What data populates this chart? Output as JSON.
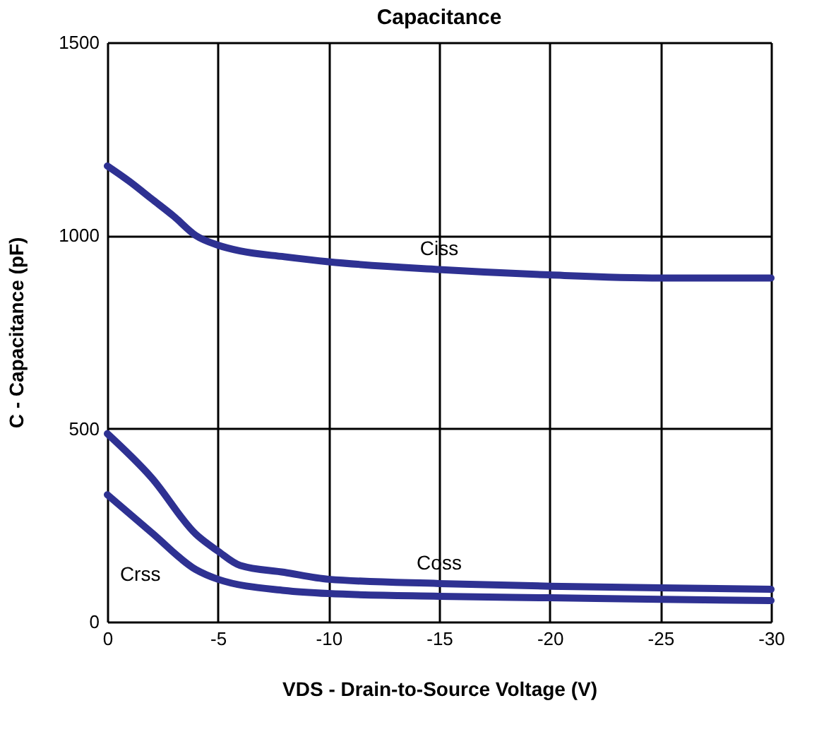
{
  "chart_data": {
    "type": "line",
    "title": "Capacitance",
    "xlabel": "VDS - Drain-to-Source Voltage (V)",
    "ylabel": "C - Capacitance (pF)",
    "xlim": [
      0,
      -30
    ],
    "xticks": [
      0,
      -5,
      -10,
      -15,
      -20,
      -25,
      -30
    ],
    "ylim": [
      0,
      1500
    ],
    "yticks": [
      0,
      500,
      1000,
      1500
    ],
    "grid": true,
    "marker": "none",
    "line_style": "solid",
    "series": [
      {
        "name": "Ciss",
        "color": "#2e3192",
        "x": [
          0,
          -1,
          -2,
          -3,
          -4,
          -5,
          -6,
          -8,
          -10,
          -15,
          -20,
          -25,
          -30
        ],
        "values": [
          1180,
          1140,
          1095,
          1050,
          1000,
          975,
          960,
          945,
          932,
          912,
          898,
          890,
          890
        ]
      },
      {
        "name": "Coss",
        "color": "#2e3192",
        "x": [
          0,
          -2,
          -4,
          -5,
          -6,
          -8,
          -10,
          -15,
          -20,
          -25,
          -30
        ],
        "values": [
          487,
          373,
          227,
          183,
          146,
          128,
          110,
          99,
          92,
          88,
          84
        ]
      },
      {
        "name": "Crss",
        "color": "#2e3192",
        "x": [
          0,
          -2,
          -4,
          -5,
          -8,
          -10,
          -15,
          -20,
          -25,
          -30
        ],
        "values": [
          329,
          231,
          135,
          110,
          81,
          73,
          66,
          62,
          58,
          55
        ]
      }
    ]
  }
}
